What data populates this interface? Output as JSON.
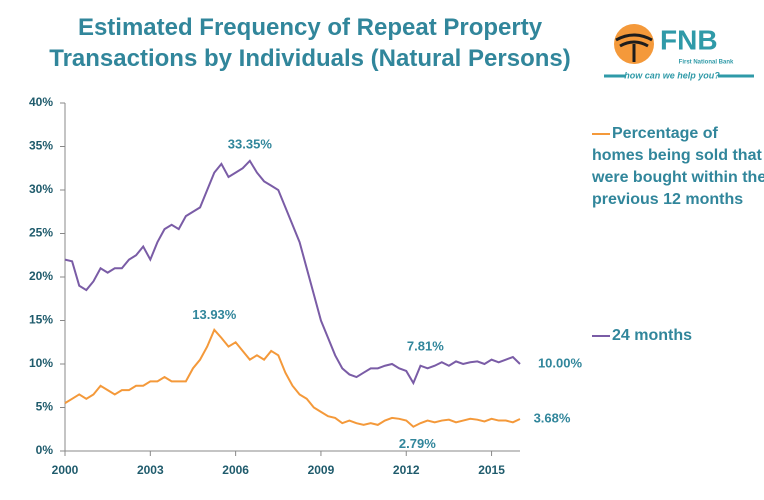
{
  "chart_data": {
    "type": "line",
    "title": "Estimated  Frequency of Repeat  Property Transactions by Individuals (Natural Persons)",
    "logo": {
      "name": "FNB",
      "subtitle": "First National Bank",
      "tagline": "how can we help you?"
    },
    "x": [
      2000,
      2000.25,
      2000.5,
      2000.75,
      2001,
      2001.25,
      2001.5,
      2001.75,
      2002,
      2002.25,
      2002.5,
      2002.75,
      2003,
      2003.25,
      2003.5,
      2003.75,
      2004,
      2004.25,
      2004.5,
      2004.75,
      2005,
      2005.25,
      2005.5,
      2005.75,
      2006,
      2006.25,
      2006.5,
      2006.75,
      2007,
      2007.25,
      2007.5,
      2007.75,
      2008,
      2008.25,
      2008.5,
      2008.75,
      2009,
      2009.25,
      2009.5,
      2009.75,
      2010,
      2010.25,
      2010.5,
      2010.75,
      2011,
      2011.25,
      2011.5,
      2011.75,
      2012,
      2012.25,
      2012.5,
      2012.75,
      2013,
      2013.25,
      2013.5,
      2013.75,
      2014,
      2014.25,
      2014.5,
      2014.75,
      2015,
      2015.25,
      2015.5,
      2015.75,
      2016
    ],
    "series": [
      {
        "name": "Percentage of homes being sold that were bought within the previous 12 months",
        "color": "#f4993a",
        "values": [
          5.5,
          6,
          6.5,
          6,
          6.5,
          7.5,
          7,
          6.5,
          7,
          7,
          7.5,
          7.5,
          8,
          8,
          8.5,
          8,
          8,
          8,
          9.5,
          10.5,
          12,
          13.93,
          13,
          12,
          12.5,
          11.5,
          10.5,
          11,
          10.5,
          11.5,
          11,
          9,
          7.5,
          6.5,
          6,
          5,
          4.5,
          4,
          3.8,
          3.2,
          3.5,
          3.2,
          3,
          3.2,
          3,
          3.5,
          3.8,
          3.7,
          3.5,
          2.79,
          3.2,
          3.5,
          3.3,
          3.5,
          3.6,
          3.3,
          3.5,
          3.7,
          3.6,
          3.4,
          3.7,
          3.5,
          3.5,
          3.3,
          3.68
        ]
      },
      {
        "name": "24 months",
        "color": "#7a5ca6",
        "values": [
          22,
          21.8,
          19,
          18.5,
          19.5,
          21,
          20.5,
          21,
          21,
          22,
          22.5,
          23.5,
          22,
          24,
          25.5,
          26,
          25.5,
          27,
          27.5,
          28,
          30,
          32,
          33,
          31.5,
          32,
          32.5,
          33.35,
          32,
          31,
          30.5,
          30,
          28,
          26,
          24,
          21,
          18,
          15,
          13,
          11,
          9.5,
          8.8,
          8.5,
          9,
          9.5,
          9.5,
          9.8,
          10,
          9.5,
          9.2,
          7.81,
          9.8,
          9.5,
          9.8,
          10.2,
          9.8,
          10.3,
          10,
          10.2,
          10.3,
          10,
          10.5,
          10.2,
          10.5,
          10.8,
          10.0
        ]
      }
    ],
    "annotations": [
      {
        "text": "33.35%",
        "x": 2006.5,
        "y": 33.35
      },
      {
        "text": "13.93%",
        "x": 2005.25,
        "y": 13.93
      },
      {
        "text": "7.81%",
        "x": 2012.25,
        "y": 7.81
      },
      {
        "text": "2.79%",
        "x": 2012.25,
        "y": 2.79
      },
      {
        "text": "10.00%",
        "x": 2016,
        "y": 10.0
      },
      {
        "text": "3.68%",
        "x": 2016,
        "y": 3.68
      }
    ],
    "xlim": [
      2000,
      2016
    ],
    "xticks": [
      2000,
      2003,
      2006,
      2009,
      2012,
      2015
    ],
    "ylim": [
      0,
      40
    ],
    "yticks": [
      {
        "value": 0,
        "label": "0%"
      },
      {
        "value": 5,
        "label": "5%"
      },
      {
        "value": 10,
        "label": "10%"
      },
      {
        "value": 15,
        "label": "15%"
      },
      {
        "value": 20,
        "label": "20%"
      },
      {
        "value": 25,
        "label": "25%"
      },
      {
        "value": 30,
        "label": "30%"
      },
      {
        "value": 35,
        "label": "35%"
      },
      {
        "value": 40,
        "label": "40%"
      }
    ],
    "grid": false
  }
}
